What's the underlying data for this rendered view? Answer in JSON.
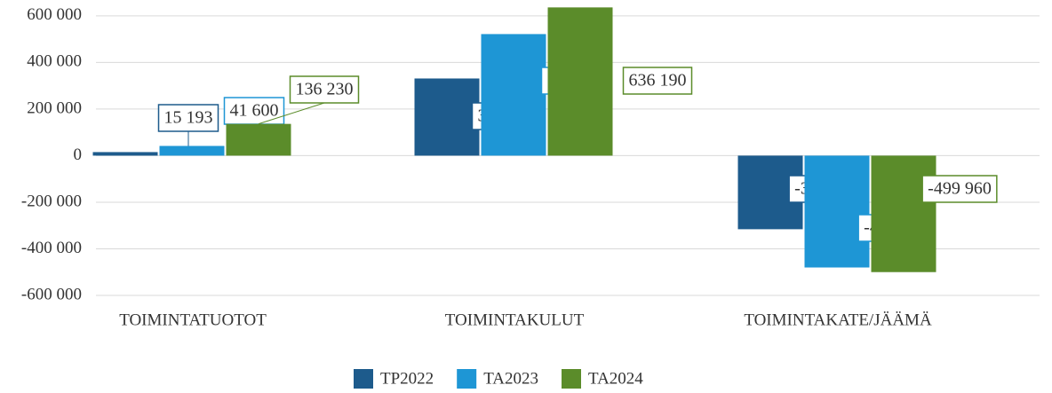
{
  "chart_data": {
    "type": "bar",
    "categories": [
      "TOIMINTATUOTOT",
      "TOIMINTAKULUT",
      "TOIMINTAKATE/JÄÄMÄ"
    ],
    "series": [
      {
        "name": "TP2022",
        "color": "#1d5b8c",
        "values": [
          15193,
          331102,
          -315909
        ],
        "value_labels": [
          "15 193",
          "331 102",
          "-315 909"
        ]
      },
      {
        "name": "TA2023",
        "color": "#1e96d5",
        "values": [
          41600,
          521730,
          -480130
        ],
        "value_labels": [
          "41 600",
          "521 730",
          "-480 130"
        ]
      },
      {
        "name": "TA2024",
        "color": "#5b8c2a",
        "values": [
          136230,
          636190,
          -499960
        ],
        "value_labels": [
          "136 230",
          "636 190",
          "-499 960"
        ]
      }
    ],
    "ylim": [
      -600000,
      668000
    ],
    "yticks": [
      {
        "value": -600000,
        "label": "-600 000"
      },
      {
        "value": -400000,
        "label": "-400 000"
      },
      {
        "value": -200000,
        "label": "-200 000"
      },
      0,
      {
        "value": 200000,
        "label": "200 000"
      },
      {
        "value": 400000,
        "label": "400 000"
      },
      {
        "value": 600000,
        "label": "600 000"
      }
    ],
    "grid": true,
    "legend": "bottom"
  }
}
